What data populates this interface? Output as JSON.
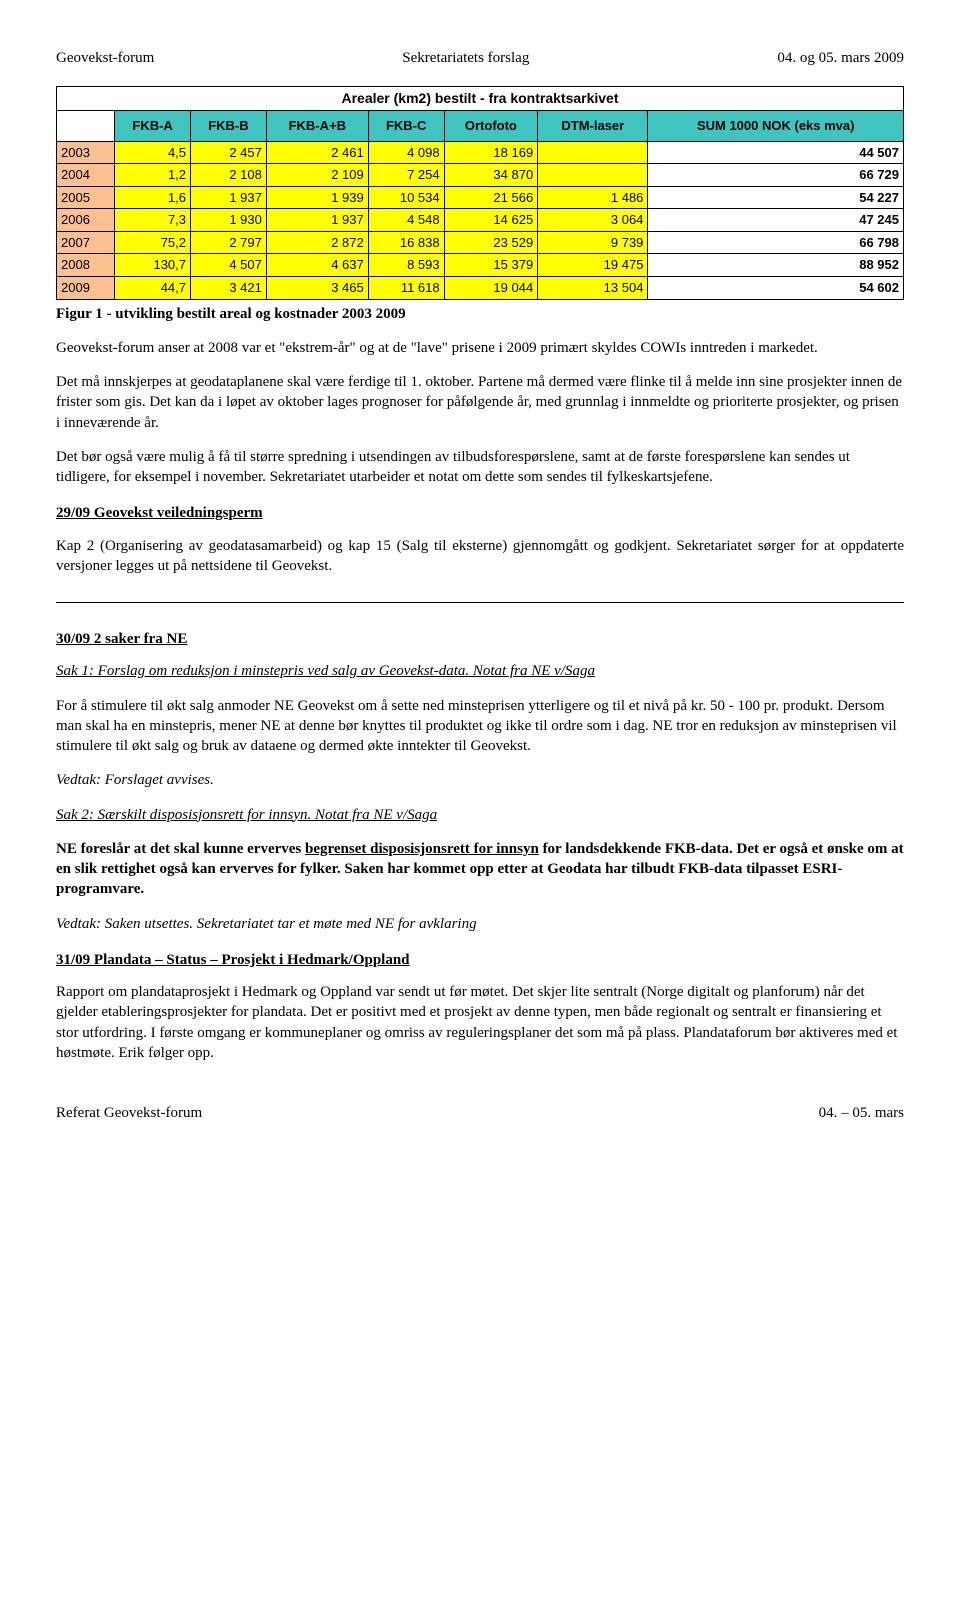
{
  "header": {
    "left": "Geovekst-forum",
    "center": "Sekretariatets forslag",
    "right": "04. og 05. mars 2009"
  },
  "table": {
    "type": "table",
    "title": "Arealer (km2) bestilt - fra kontraktsarkivet",
    "columns": [
      "",
      "FKB-A",
      "FKB-B",
      "FKB-A+B",
      "FKB-C",
      "Ortofoto",
      "DTM-laser",
      "SUM 1000 NOK (eks mva)"
    ],
    "header_bg": "#40c4c0",
    "year_bg": "#fac090",
    "cell_bg": "#ffff00",
    "sum_bg": "#ffffff",
    "border_color": "#000000",
    "font_family": "Arial",
    "header_fontsize": 13,
    "cell_fontsize": 13,
    "rows": [
      {
        "year": "2003",
        "cells": [
          "4,5",
          "2 457",
          "2 461",
          "4 098",
          "18 169",
          ""
        ],
        "sum": "44 507"
      },
      {
        "year": "2004",
        "cells": [
          "1,2",
          "2 108",
          "2 109",
          "7 254",
          "34 870",
          ""
        ],
        "sum": "66 729"
      },
      {
        "year": "2005",
        "cells": [
          "1,6",
          "1 937",
          "1 939",
          "10 534",
          "21 566",
          "1 486"
        ],
        "sum": "54 227"
      },
      {
        "year": "2006",
        "cells": [
          "7,3",
          "1 930",
          "1 937",
          "4 548",
          "14 625",
          "3 064"
        ],
        "sum": "47 245"
      },
      {
        "year": "2007",
        "cells": [
          "75,2",
          "2 797",
          "2 872",
          "16 838",
          "23 529",
          "9 739"
        ],
        "sum": "66 798"
      },
      {
        "year": "2008",
        "cells": [
          "130,7",
          "4 507",
          "4 637",
          "8 593",
          "15 379",
          "19 475"
        ],
        "sum": "88 952"
      },
      {
        "year": "2009",
        "cells": [
          "44,7",
          "3 421",
          "3 465",
          "11 618",
          "19 044",
          "13 504"
        ],
        "sum": "54 602"
      }
    ]
  },
  "caption": "Figur 1 - utvikling bestilt areal og kostnader 2003 2009",
  "para1": "Geovekst-forum anser at 2008 var et \"ekstrem-år\" og at de \"lave\" prisene i 2009 primært skyldes COWIs inntreden i markedet.",
  "para2": "Det må innskjerpes at geodataplanene skal være ferdige til 1. oktober. Partene må dermed være flinke til å melde inn sine prosjekter innen de frister som gis. Det kan da i løpet av oktober lages prognoser for påfølgende år, med grunnlag i innmeldte og prioriterte prosjekter, og prisen i inneværende år.",
  "para3": "Det bør også være mulig å få til større spredning i utsendingen av tilbudsforespørslene, samt at de første forespørslene kan sendes ut tidligere, for eksempel i november. Sekretariatet utarbeider et notat om dette som sendes til fylkeskartsjefene.",
  "sec29_title": "29/09 Geovekst veiledningsperm",
  "sec29_body": "Kap 2 (Organisering av geodatasamarbeid) og kap 15 (Salg til eksterne) gjennomgått og godkjent. Sekretariatet sørger for at oppdaterte versjoner legges ut på nettsidene til Geovekst.",
  "sec30_title": "30/09 2 saker fra NE",
  "sak1_title": "Sak 1: Forslag om reduksjon i minstepris ved salg av Geovekst-data. Notat fra NE v/Saga",
  "sak1_body": "For å stimulere til økt salg anmoder NE Geovekst om å sette ned minsteprisen ytterligere og til et nivå på kr. 50 - 100 pr. produkt. Dersom man skal ha en minstepris, mener NE at denne bør knyttes til produktet og ikke til ordre som i dag. NE tror en reduksjon av minsteprisen vil stimulere til økt salg og bruk av dataene og dermed økte inntekter til Geovekst.",
  "sak1_vedtak": "Vedtak: Forslaget avvises.",
  "sak2_title": "Sak 2: Særskilt disposisjonsrett for innsyn. Notat fra NE v/Saga",
  "sak2_body_lead": "NE foreslår at det skal kunne erverves ",
  "sak2_body_underlined": "begrenset disposisjonsrett for innsyn",
  "sak2_body_tail": " for landsdekkende FKB-data. Det er også et ønske om at en slik rettighet også kan erverves for fylker. Saken har kommet opp etter at Geodata har tilbudt FKB-data tilpasset ESRI-programvare.",
  "sak2_vedtak": "Vedtak: Saken utsettes. Sekretariatet tar et møte med NE for avklaring",
  "sec31_title": "31/09 Plandata – Status – Prosjekt i Hedmark/Oppland",
  "sec31_body": "Rapport om plandataprosjekt i Hedmark og Oppland var sendt ut før møtet. Det skjer lite sentralt (Norge digitalt og planforum) når det gjelder etableringsprosjekter for plandata. Det er positivt med et prosjekt av denne typen, men både regionalt og sentralt er finansiering et stor utfordring. I første omgang er kommuneplaner og omriss av reguleringsplaner det som må på plass. Plandataforum bør aktiveres med et høstmøte. Erik følger opp.",
  "footer": {
    "left": "Referat Geovekst-forum",
    "right": "04. – 05. mars"
  }
}
